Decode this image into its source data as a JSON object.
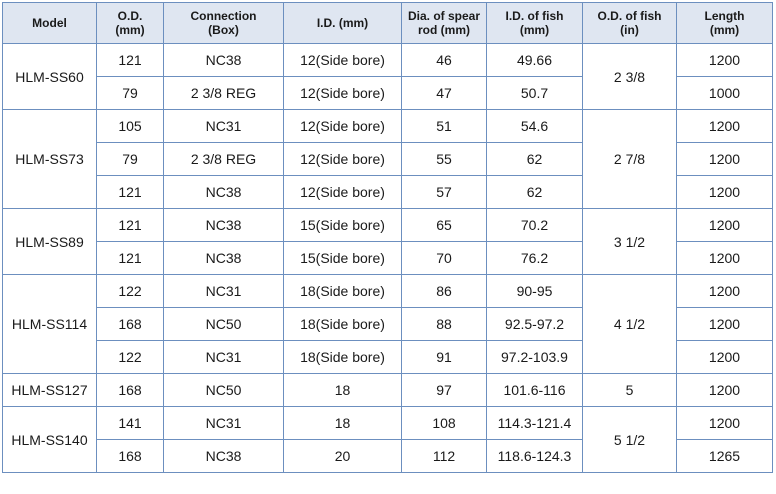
{
  "headers": [
    [
      "Model"
    ],
    [
      "O.D.",
      "(mm)"
    ],
    [
      "Connection",
      "(Box)"
    ],
    [
      "I.D. (mm)"
    ],
    [
      "Dia. of spear",
      "rod (mm)"
    ],
    [
      "I.D. of fish",
      "(mm)"
    ],
    [
      "O.D. of fish",
      "(in)"
    ],
    [
      "Length",
      "(mm)"
    ]
  ],
  "groups": [
    {
      "model": "HLM-SS60",
      "od_fish_in": "2 3/8",
      "rows": [
        {
          "od": "121",
          "connection": "NC38",
          "id": "12(Side bore)",
          "spear": "46",
          "fish_id": "49.66",
          "length": "1200"
        },
        {
          "od": "79",
          "connection": "2 3/8 REG",
          "id": "12(Side bore)",
          "spear": "47",
          "fish_id": "50.7",
          "length": "1000"
        }
      ]
    },
    {
      "model": "HLM-SS73",
      "od_fish_in": "2 7/8",
      "rows": [
        {
          "od": "105",
          "connection": "NC31",
          "id": "12(Side bore)",
          "spear": "51",
          "fish_id": "54.6",
          "length": "1200"
        },
        {
          "od": "79",
          "connection": "2 3/8 REG",
          "id": "12(Side bore)",
          "spear": "55",
          "fish_id": "62",
          "length": "1200"
        },
        {
          "od": "121",
          "connection": "NC38",
          "id": "12(Side bore)",
          "spear": "57",
          "fish_id": "62",
          "length": "1200"
        }
      ]
    },
    {
      "model": "HLM-SS89",
      "od_fish_in": "3 1/2",
      "rows": [
        {
          "od": "121",
          "connection": "NC38",
          "id": "15(Side bore)",
          "spear": "65",
          "fish_id": "70.2",
          "length": "1200"
        },
        {
          "od": "121",
          "connection": "NC38",
          "id": "15(Side bore)",
          "spear": "70",
          "fish_id": "76.2",
          "length": "1200"
        }
      ]
    },
    {
      "model": "HLM-SS114",
      "od_fish_in": "4 1/2",
      "rows": [
        {
          "od": "122",
          "connection": "NC31",
          "id": "18(Side bore)",
          "spear": "86",
          "fish_id": "90-95",
          "length": "1200"
        },
        {
          "od": "168",
          "connection": "NC50",
          "id": "18(Side bore)",
          "spear": "88",
          "fish_id": "92.5-97.2",
          "length": "1200"
        },
        {
          "od": "122",
          "connection": "NC31",
          "id": "18(Side bore)",
          "spear": "91",
          "fish_id": "97.2-103.9",
          "length": "1200"
        }
      ]
    },
    {
      "model": "HLM-SS127",
      "od_fish_in": "5",
      "rows": [
        {
          "od": "168",
          "connection": "NC50",
          "id": "18",
          "spear": "97",
          "fish_id": "101.6-116",
          "length": "1200"
        }
      ]
    },
    {
      "model": "HLM-SS140",
      "od_fish_in": "5 1/2",
      "rows": [
        {
          "od": "141",
          "connection": "NC31",
          "id": "18",
          "spear": "108",
          "fish_id": "114.3-121.4",
          "length": "1200"
        },
        {
          "od": "168",
          "connection": "NC38",
          "id": "20",
          "spear": "112",
          "fish_id": "118.6-124.3",
          "length": "1265"
        }
      ]
    }
  ]
}
